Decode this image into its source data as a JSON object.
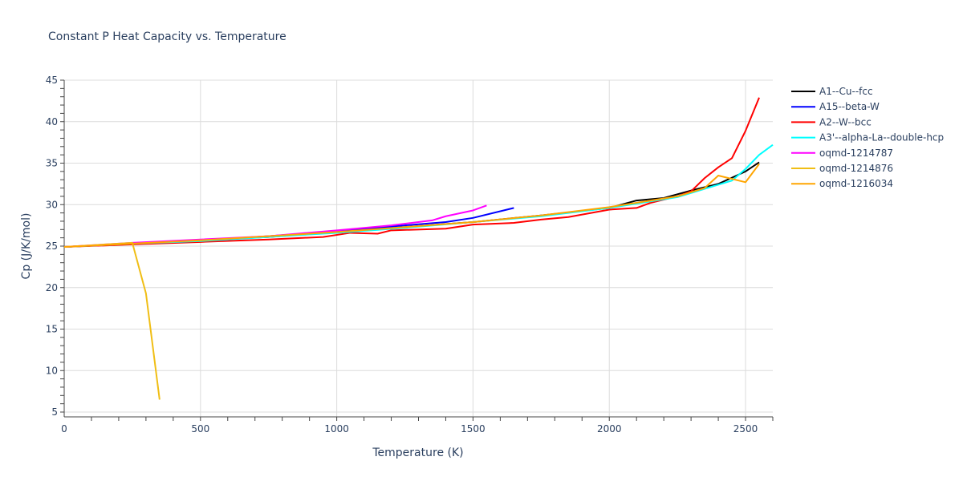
{
  "chart_data": {
    "type": "line",
    "title": "Constant P Heat Capacity vs. Temperature",
    "xlabel": "Temperature (K)",
    "ylabel": "Cp (J/K/mol)",
    "xlim": [
      0,
      2600
    ],
    "ylim": [
      4.5,
      45
    ],
    "xticks": [
      0,
      500,
      1000,
      1500,
      2000,
      2500
    ],
    "yticks": [
      5,
      10,
      15,
      20,
      25,
      30,
      35,
      40,
      45
    ],
    "grid": true,
    "legend_position": "right",
    "series": [
      {
        "name": "A1--Cu--fcc",
        "color": "#000000",
        "x": [
          0,
          250,
          500,
          750,
          1000,
          1250,
          1500,
          1750,
          2000,
          2100,
          2200,
          2300,
          2400,
          2500,
          2550
        ],
        "y": [
          24.9,
          25.3,
          25.7,
          26.1,
          26.7,
          27.3,
          27.9,
          28.7,
          29.6,
          30.5,
          30.8,
          31.7,
          32.5,
          34.0,
          35.1
        ]
      },
      {
        "name": "A15--beta-W",
        "color": "#0000ff",
        "x": [
          0,
          250,
          500,
          750,
          1000,
          1250,
          1400,
          1500,
          1650
        ],
        "y": [
          24.9,
          25.3,
          25.7,
          26.2,
          26.8,
          27.5,
          27.9,
          28.4,
          29.6
        ]
      },
      {
        "name": "A2--W--bcc",
        "color": "#ff0000",
        "x": [
          0,
          250,
          500,
          750,
          950,
          1050,
          1150,
          1200,
          1400,
          1500,
          1650,
          1750,
          1850,
          2000,
          2100,
          2150,
          2250,
          2300,
          2350,
          2400,
          2450,
          2500,
          2550
        ],
        "y": [
          24.9,
          25.2,
          25.5,
          25.8,
          26.1,
          26.6,
          26.5,
          26.9,
          27.1,
          27.6,
          27.8,
          28.2,
          28.5,
          29.4,
          29.6,
          30.2,
          31.0,
          31.6,
          33.2,
          34.5,
          35.6,
          38.9,
          42.9
        ]
      },
      {
        "name": "A3'--alpha-La--double-hcp",
        "color": "#00ffff",
        "x": [
          0,
          250,
          500,
          750,
          1000,
          1250,
          1500,
          1750,
          2000,
          2250,
          2400,
          2450,
          2500,
          2550,
          2600
        ],
        "y": [
          24.9,
          25.3,
          25.6,
          26.1,
          26.6,
          27.2,
          27.9,
          28.6,
          29.6,
          30.9,
          32.4,
          32.9,
          34.3,
          36.0,
          37.2
        ]
      },
      {
        "name": "oqmd-1214787",
        "color": "#ff00ff",
        "x": [
          0,
          250,
          500,
          750,
          1000,
          1200,
          1350,
          1400,
          1500,
          1550
        ],
        "y": [
          24.9,
          25.4,
          25.8,
          26.2,
          26.9,
          27.5,
          28.1,
          28.6,
          29.3,
          29.9
        ]
      },
      {
        "name": "oqmd-1214876",
        "color": "#f0be15",
        "x": [
          0,
          250,
          300,
          350
        ],
        "y": [
          24.9,
          25.4,
          19.3,
          6.5
        ]
      },
      {
        "name": "oqmd-1216034",
        "color": "#ffa500",
        "x": [
          0,
          250,
          500,
          750,
          1000,
          1250,
          1500,
          1750,
          2000,
          2250,
          2350,
          2400,
          2500,
          2550
        ],
        "y": [
          24.9,
          25.3,
          25.7,
          26.2,
          26.7,
          27.3,
          27.9,
          28.7,
          29.7,
          31.0,
          32.0,
          33.5,
          32.7,
          34.9
        ]
      }
    ]
  }
}
